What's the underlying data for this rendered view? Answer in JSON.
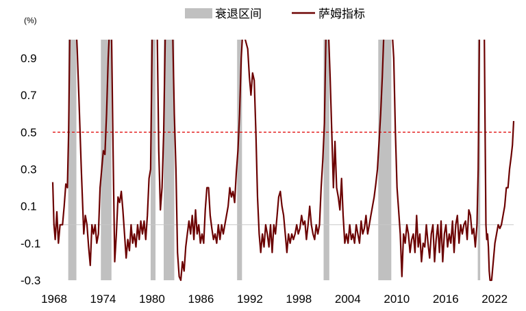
{
  "chart_data": {
    "type": "line",
    "unit_label": "(%)",
    "xlim": [
      1968,
      2024.5
    ],
    "ylim": [
      -0.3,
      1.0
    ],
    "y_ticks": [
      0.9,
      0.7,
      0.5,
      0.3,
      0.1,
      -0.1,
      -0.3
    ],
    "y_tick_labels": [
      "0.9",
      "0.7",
      "0.5",
      "0.3",
      "0.1",
      "-0.1",
      "-0.3"
    ],
    "x_ticks": [
      1968,
      1974,
      1980,
      1986,
      1992,
      1998,
      2004,
      2010,
      2016,
      2022
    ],
    "x_tick_labels": [
      "1968",
      "1974",
      "1980",
      "1986",
      "1992",
      "1998",
      "2004",
      "2010",
      "2016",
      "2022"
    ],
    "threshold": 0.5,
    "threshold_color": "#e00000",
    "zero_line_color": "#c8c8c8",
    "legend": {
      "position": "top-center",
      "items": [
        {
          "label": "衰退区间",
          "kind": "area",
          "color": "#c0c0c0"
        },
        {
          "label": "萨姆指标",
          "kind": "line",
          "color": "#6b0000"
        }
      ]
    },
    "recessions": [
      {
        "start": 1969.9,
        "end": 1970.9
      },
      {
        "start": 1973.9,
        "end": 1975.2
      },
      {
        "start": 1980.0,
        "end": 1980.6
      },
      {
        "start": 1981.6,
        "end": 1982.9
      },
      {
        "start": 1990.6,
        "end": 1991.2
      },
      {
        "start": 2001.2,
        "end": 2001.9
      },
      {
        "start": 2007.9,
        "end": 2009.5
      },
      {
        "start": 2020.1,
        "end": 2020.4
      }
    ],
    "series": [
      {
        "name": "萨姆指标",
        "color": "#6b0000",
        "points": [
          [
            1968.0,
            0.23
          ],
          [
            1968.15,
            0.0
          ],
          [
            1968.3,
            -0.08
          ],
          [
            1968.5,
            0.07
          ],
          [
            1968.7,
            -0.1
          ],
          [
            1968.9,
            0.0
          ],
          [
            1969.2,
            0.0
          ],
          [
            1969.4,
            0.1
          ],
          [
            1969.6,
            0.22
          ],
          [
            1969.8,
            0.2
          ],
          [
            1969.95,
            0.5
          ],
          [
            1970.1,
            1.05
          ],
          [
            1970.3,
            1.05
          ],
          [
            1970.9,
            1.05
          ],
          [
            1971.0,
            0.95
          ],
          [
            1971.2,
            0.7
          ],
          [
            1971.5,
            0.3
          ],
          [
            1971.8,
            -0.05
          ],
          [
            1972.0,
            0.05
          ],
          [
            1972.2,
            0.0
          ],
          [
            1972.4,
            -0.12
          ],
          [
            1972.6,
            -0.22
          ],
          [
            1972.8,
            0.0
          ],
          [
            1973.0,
            -0.05
          ],
          [
            1973.2,
            0.0
          ],
          [
            1973.4,
            -0.1
          ],
          [
            1973.6,
            -0.05
          ],
          [
            1973.8,
            0.2
          ],
          [
            1974.0,
            0.3
          ],
          [
            1974.2,
            0.4
          ],
          [
            1974.4,
            0.38
          ],
          [
            1974.6,
            0.6
          ],
          [
            1974.8,
            0.9
          ],
          [
            1974.95,
            1.05
          ],
          [
            1975.2,
            1.05
          ],
          [
            1975.4,
            0.4
          ],
          [
            1975.6,
            -0.2
          ],
          [
            1975.8,
            -0.05
          ],
          [
            1976.0,
            0.15
          ],
          [
            1976.2,
            0.12
          ],
          [
            1976.4,
            0.18
          ],
          [
            1976.6,
            0.08
          ],
          [
            1976.8,
            -0.05
          ],
          [
            1977.0,
            -0.18
          ],
          [
            1977.2,
            -0.08
          ],
          [
            1977.4,
            -0.14
          ],
          [
            1977.6,
            0.0
          ],
          [
            1977.8,
            -0.1
          ],
          [
            1978.0,
            -0.05
          ],
          [
            1978.2,
            -0.12
          ],
          [
            1978.4,
            0.0
          ],
          [
            1978.6,
            -0.08
          ],
          [
            1978.8,
            0.02
          ],
          [
            1979.0,
            -0.05
          ],
          [
            1979.2,
            0.02
          ],
          [
            1979.4,
            -0.08
          ],
          [
            1979.6,
            0.05
          ],
          [
            1979.8,
            0.25
          ],
          [
            1980.0,
            0.3
          ],
          [
            1980.2,
            1.05
          ],
          [
            1980.8,
            1.05
          ],
          [
            1981.0,
            0.4
          ],
          [
            1981.2,
            0.08
          ],
          [
            1981.4,
            0.2
          ],
          [
            1981.6,
            0.5
          ],
          [
            1981.8,
            1.05
          ],
          [
            1982.7,
            1.05
          ],
          [
            1982.9,
            0.6
          ],
          [
            1983.1,
            0.3
          ],
          [
            1983.3,
            -0.15
          ],
          [
            1983.5,
            -0.28
          ],
          [
            1983.7,
            -0.3
          ],
          [
            1983.9,
            -0.2
          ],
          [
            1984.1,
            -0.25
          ],
          [
            1984.3,
            -0.12
          ],
          [
            1984.5,
            -0.05
          ],
          [
            1984.7,
            0.02
          ],
          [
            1984.9,
            -0.05
          ],
          [
            1985.1,
            0.05
          ],
          [
            1985.3,
            -0.08
          ],
          [
            1985.5,
            0.08
          ],
          [
            1985.7,
            -0.05
          ],
          [
            1985.9,
            0.0
          ],
          [
            1986.1,
            -0.1
          ],
          [
            1986.3,
            -0.05
          ],
          [
            1986.5,
            -0.1
          ],
          [
            1986.7,
            0.08
          ],
          [
            1986.9,
            0.2
          ],
          [
            1987.1,
            0.2
          ],
          [
            1987.3,
            0.05
          ],
          [
            1987.5,
            -0.02
          ],
          [
            1987.7,
            -0.08
          ],
          [
            1987.9,
            -0.05
          ],
          [
            1988.1,
            -0.1
          ],
          [
            1988.3,
            0.0
          ],
          [
            1988.5,
            -0.08
          ],
          [
            1988.7,
            0.0
          ],
          [
            1988.9,
            -0.05
          ],
          [
            1989.1,
            0.0
          ],
          [
            1989.3,
            0.05
          ],
          [
            1989.5,
            0.1
          ],
          [
            1989.7,
            0.2
          ],
          [
            1989.9,
            0.15
          ],
          [
            1990.1,
            0.18
          ],
          [
            1990.3,
            0.12
          ],
          [
            1990.5,
            0.28
          ],
          [
            1990.7,
            0.4
          ],
          [
            1990.9,
            0.6
          ],
          [
            1991.1,
            0.9
          ],
          [
            1991.3,
            1.05
          ],
          [
            1991.6,
            1.0
          ],
          [
            1991.9,
            0.95
          ],
          [
            1992.1,
            0.8
          ],
          [
            1992.3,
            0.7
          ],
          [
            1992.5,
            0.82
          ],
          [
            1992.7,
            0.78
          ],
          [
            1992.9,
            0.5
          ],
          [
            1993.1,
            0.15
          ],
          [
            1993.3,
            -0.05
          ],
          [
            1993.5,
            -0.15
          ],
          [
            1993.7,
            -0.05
          ],
          [
            1993.9,
            -0.12
          ],
          [
            1994.1,
            0.0
          ],
          [
            1994.3,
            -0.05
          ],
          [
            1994.5,
            -0.12
          ],
          [
            1994.7,
            0.0
          ],
          [
            1994.9,
            -0.15
          ],
          [
            1995.1,
            0.0
          ],
          [
            1995.3,
            -0.05
          ],
          [
            1995.5,
            0.05
          ],
          [
            1995.7,
            0.15
          ],
          [
            1995.9,
            0.18
          ],
          [
            1996.1,
            0.1
          ],
          [
            1996.3,
            0.05
          ],
          [
            1996.5,
            -0.05
          ],
          [
            1996.7,
            -0.15
          ],
          [
            1996.9,
            -0.05
          ],
          [
            1997.1,
            -0.1
          ],
          [
            1997.3,
            -0.05
          ],
          [
            1997.5,
            -0.08
          ],
          [
            1997.7,
            -0.05
          ],
          [
            1997.9,
            0.0
          ],
          [
            1998.1,
            -0.05
          ],
          [
            1998.3,
            -0.02
          ],
          [
            1998.5,
            0.05
          ],
          [
            1998.7,
            0.0
          ],
          [
            1998.9,
            0.02
          ],
          [
            1999.1,
            -0.08
          ],
          [
            1999.3,
            0.0
          ],
          [
            1999.5,
            0.1
          ],
          [
            1999.7,
            0.0
          ],
          [
            1999.9,
            -0.05
          ],
          [
            2000.1,
            -0.08
          ],
          [
            2000.3,
            0.0
          ],
          [
            2000.5,
            -0.05
          ],
          [
            2000.7,
            0.0
          ],
          [
            2000.9,
            0.2
          ],
          [
            2001.1,
            0.35
          ],
          [
            2001.3,
            0.55
          ],
          [
            2001.5,
            1.05
          ],
          [
            2001.8,
            1.05
          ],
          [
            2002.0,
            0.8
          ],
          [
            2002.2,
            0.5
          ],
          [
            2002.4,
            0.2
          ],
          [
            2002.6,
            0.45
          ],
          [
            2002.8,
            0.2
          ],
          [
            2003.0,
            0.15
          ],
          [
            2003.2,
            0.08
          ],
          [
            2003.4,
            0.25
          ],
          [
            2003.6,
            0.05
          ],
          [
            2003.8,
            -0.1
          ],
          [
            2004.0,
            -0.05
          ],
          [
            2004.2,
            -0.1
          ],
          [
            2004.4,
            0.0
          ],
          [
            2004.6,
            -0.08
          ],
          [
            2004.8,
            -0.05
          ],
          [
            2005.0,
            -0.1
          ],
          [
            2005.2,
            0.0
          ],
          [
            2005.4,
            -0.05
          ],
          [
            2005.6,
            -0.1
          ],
          [
            2005.8,
            0.02
          ],
          [
            2006.0,
            -0.05
          ],
          [
            2006.2,
            -0.02
          ],
          [
            2006.4,
            0.05
          ],
          [
            2006.6,
            -0.05
          ],
          [
            2006.8,
            0.0
          ],
          [
            2007.0,
            0.05
          ],
          [
            2007.2,
            0.1
          ],
          [
            2007.4,
            0.15
          ],
          [
            2007.6,
            0.22
          ],
          [
            2007.8,
            0.3
          ],
          [
            2008.0,
            0.45
          ],
          [
            2008.2,
            0.6
          ],
          [
            2008.4,
            0.8
          ],
          [
            2008.6,
            1.05
          ],
          [
            2009.6,
            1.05
          ],
          [
            2009.8,
            0.9
          ],
          [
            2010.0,
            0.5
          ],
          [
            2010.2,
            0.2
          ],
          [
            2010.4,
            0.08
          ],
          [
            2010.6,
            -0.05
          ],
          [
            2010.8,
            -0.28
          ],
          [
            2011.0,
            -0.05
          ],
          [
            2011.2,
            -0.1
          ],
          [
            2011.4,
            0.0
          ],
          [
            2011.6,
            -0.05
          ],
          [
            2011.8,
            -0.15
          ],
          [
            2012.0,
            -0.08
          ],
          [
            2012.2,
            -0.05
          ],
          [
            2012.4,
            -0.15
          ],
          [
            2012.6,
            0.05
          ],
          [
            2012.8,
            -0.12
          ],
          [
            2013.0,
            -0.05
          ],
          [
            2013.2,
            -0.2
          ],
          [
            2013.4,
            -0.1
          ],
          [
            2013.6,
            -0.12
          ],
          [
            2013.8,
            0.0
          ],
          [
            2014.0,
            -0.1
          ],
          [
            2014.2,
            -0.18
          ],
          [
            2014.4,
            -0.05
          ],
          [
            2014.6,
            0.0
          ],
          [
            2014.8,
            -0.2
          ],
          [
            2015.0,
            -0.08
          ],
          [
            2015.2,
            0.0
          ],
          [
            2015.4,
            -0.15
          ],
          [
            2015.6,
            0.02
          ],
          [
            2015.8,
            -0.2
          ],
          [
            2016.0,
            -0.05
          ],
          [
            2016.2,
            0.0
          ],
          [
            2016.4,
            -0.12
          ],
          [
            2016.6,
            -0.05
          ],
          [
            2016.8,
            -0.1
          ],
          [
            2017.0,
            0.02
          ],
          [
            2017.2,
            -0.15
          ],
          [
            2017.4,
            0.0
          ],
          [
            2017.6,
            0.05
          ],
          [
            2017.8,
            -0.1
          ],
          [
            2018.0,
            0.0
          ],
          [
            2018.2,
            -0.05
          ],
          [
            2018.4,
            0.0
          ],
          [
            2018.6,
            0.02
          ],
          [
            2018.8,
            -0.08
          ],
          [
            2019.0,
            0.08
          ],
          [
            2019.2,
            0.05
          ],
          [
            2019.4,
            -0.05
          ],
          [
            2019.6,
            -0.02
          ],
          [
            2019.8,
            -0.12
          ],
          [
            2020.0,
            0.0
          ],
          [
            2020.15,
            0.3
          ],
          [
            2020.3,
            1.05
          ],
          [
            2020.9,
            1.05
          ],
          [
            2021.0,
            0.5
          ],
          [
            2021.1,
            0.0
          ],
          [
            2021.2,
            -0.08
          ],
          [
            2021.3,
            -0.05
          ],
          [
            2021.4,
            -0.12
          ],
          [
            2021.5,
            -0.25
          ],
          [
            2021.6,
            -0.3
          ],
          [
            2021.8,
            -0.3
          ],
          [
            2022.0,
            -0.2
          ],
          [
            2022.2,
            -0.1
          ],
          [
            2022.4,
            -0.05
          ],
          [
            2022.6,
            0.0
          ],
          [
            2022.8,
            -0.02
          ],
          [
            2023.0,
            0.0
          ],
          [
            2023.2,
            0.05
          ],
          [
            2023.4,
            0.1
          ],
          [
            2023.6,
            0.2
          ],
          [
            2023.8,
            0.2
          ],
          [
            2024.0,
            0.3
          ],
          [
            2024.2,
            0.37
          ],
          [
            2024.35,
            0.43
          ],
          [
            2024.5,
            0.56
          ]
        ]
      }
    ]
  }
}
